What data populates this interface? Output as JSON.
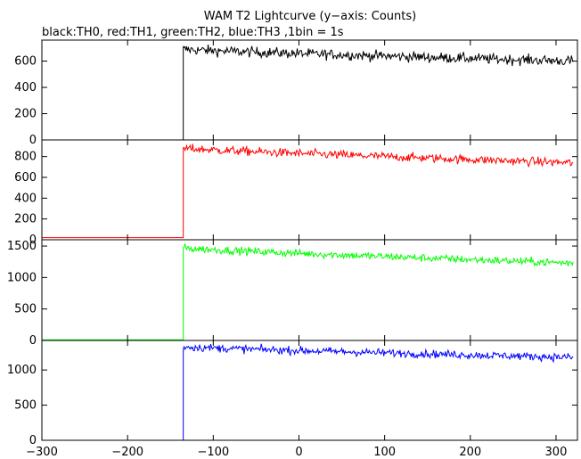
{
  "title": "WAM T2 Lightcurve (y−axis: Counts)",
  "subtitle": "black:TH0, red:TH1, green:TH2, blue:TH3 ,1bin = 1s",
  "chart_data": [
    {
      "type": "line",
      "name": "TH0",
      "color": "#000000",
      "xlim": [
        -300,
        325
      ],
      "ylim": [
        0,
        760
      ],
      "yticks": [
        0,
        200,
        400,
        600
      ],
      "trigger_x": -135,
      "pre_level": 0,
      "post_start": 690,
      "post_end": 600,
      "noise": 28
    },
    {
      "type": "line",
      "name": "TH1",
      "color": "#ff0000",
      "xlim": [
        -300,
        325
      ],
      "ylim": [
        0,
        960
      ],
      "yticks": [
        0,
        200,
        400,
        600,
        800
      ],
      "trigger_x": -135,
      "pre_level": 20,
      "post_start": 880,
      "post_end": 740,
      "noise": 30
    },
    {
      "type": "line",
      "name": "TH2",
      "color": "#00ff00",
      "xlim": [
        -300,
        325
      ],
      "ylim": [
        0,
        1600
      ],
      "yticks": [
        0,
        500,
        1000,
        1500
      ],
      "trigger_x": -135,
      "pre_level": 10,
      "post_start": 1470,
      "post_end": 1230,
      "noise": 45
    },
    {
      "type": "line",
      "name": "TH3",
      "color": "#0000ff",
      "xlim": [
        -300,
        325
      ],
      "ylim": [
        0,
        1420
      ],
      "yticks": [
        0,
        500,
        1000
      ],
      "trigger_x": -135,
      "pre_level": 0,
      "post_start": 1330,
      "post_end": 1180,
      "noise": 40
    }
  ],
  "xticks": [
    -300,
    -200,
    -100,
    0,
    100,
    200,
    300
  ]
}
